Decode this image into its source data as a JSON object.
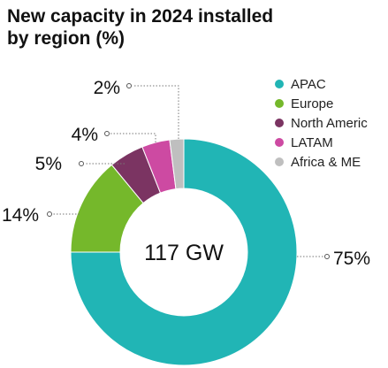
{
  "chart_data": {
    "type": "pie",
    "title": "New capacity in 2024 installed by region (%)",
    "center_label": "117 GW",
    "categories": [
      "APAC",
      "Europe",
      "North Americ",
      "LATAM",
      "Africa & ME"
    ],
    "values": [
      75,
      14,
      5,
      4,
      2
    ],
    "data_labels": [
      "75%",
      "14%",
      "5%",
      "4%",
      "2%"
    ],
    "donut": true,
    "legend_position": "top-right",
    "colors": [
      "#21b5b5",
      "#75b82b",
      "#7b3462",
      "#cd4aa2",
      "#bfbfbf"
    ]
  }
}
